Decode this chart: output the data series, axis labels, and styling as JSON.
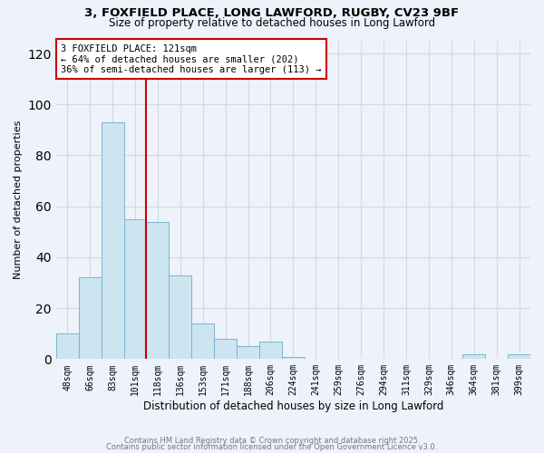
{
  "title1": "3, FOXFIELD PLACE, LONG LAWFORD, RUGBY, CV23 9BF",
  "title2": "Size of property relative to detached houses in Long Lawford",
  "xlabel": "Distribution of detached houses by size in Long Lawford",
  "ylabel": "Number of detached properties",
  "bar_labels": [
    "48sqm",
    "66sqm",
    "83sqm",
    "101sqm",
    "118sqm",
    "136sqm",
    "153sqm",
    "171sqm",
    "188sqm",
    "206sqm",
    "224sqm",
    "241sqm",
    "259sqm",
    "276sqm",
    "294sqm",
    "311sqm",
    "329sqm",
    "346sqm",
    "364sqm",
    "381sqm",
    "399sqm"
  ],
  "bar_values": [
    10,
    32,
    93,
    55,
    54,
    33,
    14,
    8,
    5,
    7,
    1,
    0,
    0,
    0,
    0,
    0,
    0,
    0,
    2,
    0,
    2
  ],
  "bar_color": "#cce5f0",
  "bar_edge_color": "#7ab5d0",
  "vline_color": "#cc0000",
  "ylim": [
    0,
    125
  ],
  "yticks": [
    0,
    20,
    40,
    60,
    80,
    100,
    120
  ],
  "annotation_title": "3 FOXFIELD PLACE: 121sqm",
  "annotation_line1": "← 64% of detached houses are smaller (202)",
  "annotation_line2": "36% of semi-detached houses are larger (113) →",
  "footer1": "Contains HM Land Registry data © Crown copyright and database right 2025.",
  "footer2": "Contains public sector information licensed under the Open Government Licence v3.0.",
  "bg_color": "#eef2fb",
  "grid_color": "#d0d8e8"
}
